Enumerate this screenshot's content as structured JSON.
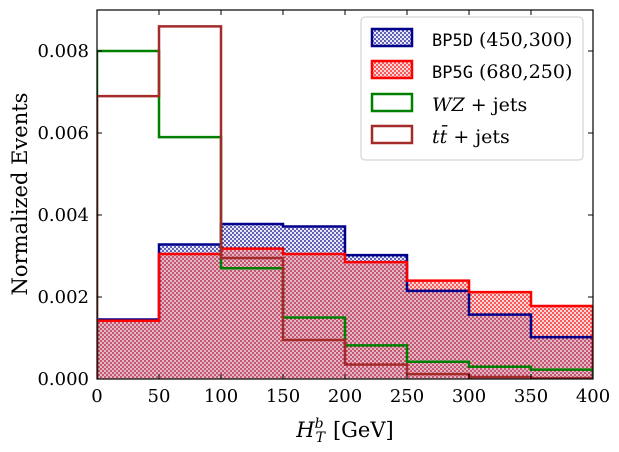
{
  "chart_data": {
    "type": "histogram",
    "xlabel_main": "H",
    "xlabel_sup": "b",
    "xlabel_sub": "T",
    "xlabel_unit": "[GeV]",
    "ylabel": "Normalized Events",
    "xlim": [
      0,
      400
    ],
    "ylim": [
      0,
      0.009
    ],
    "x_ticks": [
      0,
      50,
      100,
      150,
      200,
      250,
      300,
      350,
      400
    ],
    "x_tick_labels": [
      "0",
      "50",
      "100",
      "150",
      "200",
      "250",
      "300",
      "350",
      "400"
    ],
    "y_ticks": [
      0,
      0.002,
      0.004,
      0.006,
      0.008
    ],
    "y_tick_labels": [
      "0.000",
      "0.002",
      "0.004",
      "0.006",
      "0.008"
    ],
    "bin_edges": [
      0,
      50,
      100,
      150,
      200,
      250,
      300,
      350,
      400
    ],
    "series": [
      {
        "key": "bp5d",
        "name_mono": "BP5D",
        "name_rest": " (450,300)",
        "style": "filled-hatched",
        "color": "#00008b",
        "values": [
          0.00145,
          0.00328,
          0.00378,
          0.00372,
          0.00302,
          0.00215,
          0.00157,
          0.00102
        ]
      },
      {
        "key": "bp5g",
        "name_mono": "BP5G",
        "name_rest": " (680,250)",
        "style": "filled-hatched",
        "color": "#ff0000",
        "values": [
          0.00142,
          0.00305,
          0.00318,
          0.00305,
          0.00285,
          0.0024,
          0.00212,
          0.00178
        ]
      },
      {
        "key": "wz",
        "name_math": "WZ",
        "name_rest": " + jets",
        "style": "step",
        "color": "#008000",
        "values": [
          0.008,
          0.0059,
          0.0027,
          0.0015,
          0.00082,
          0.00042,
          0.0003,
          0.00023
        ]
      },
      {
        "key": "tt",
        "name_math": "tt̄",
        "name_rest": " + jets",
        "style": "step",
        "color": "#a52a2a",
        "values": [
          0.0069,
          0.0086,
          0.00295,
          0.00095,
          0.00035,
          0.00012,
          5e-05,
          2e-05
        ]
      }
    ],
    "legend_position": "top-right"
  }
}
